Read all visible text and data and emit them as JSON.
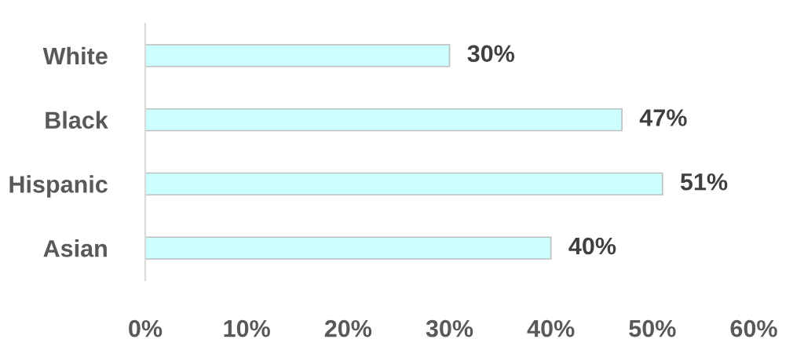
{
  "chart_data": {
    "type": "bar",
    "orientation": "horizontal",
    "categories": [
      "White",
      "Black",
      "Hispanic",
      "Asian"
    ],
    "values": [
      30,
      47,
      51,
      40
    ],
    "color": "#ccffff",
    "value_labels": [
      "30%",
      "47%",
      "51%",
      "40%"
    ],
    "xlim": [
      0,
      60
    ],
    "xticks": [
      {
        "value": 0,
        "label": "0%"
      },
      {
        "value": 10,
        "label": "10%"
      },
      {
        "value": 20,
        "label": "20%"
      },
      {
        "value": 30,
        "label": "30%"
      },
      {
        "value": 40,
        "label": "40%"
      },
      {
        "value": 50,
        "label": "50%"
      },
      {
        "value": 60,
        "label": "60%"
      }
    ]
  }
}
